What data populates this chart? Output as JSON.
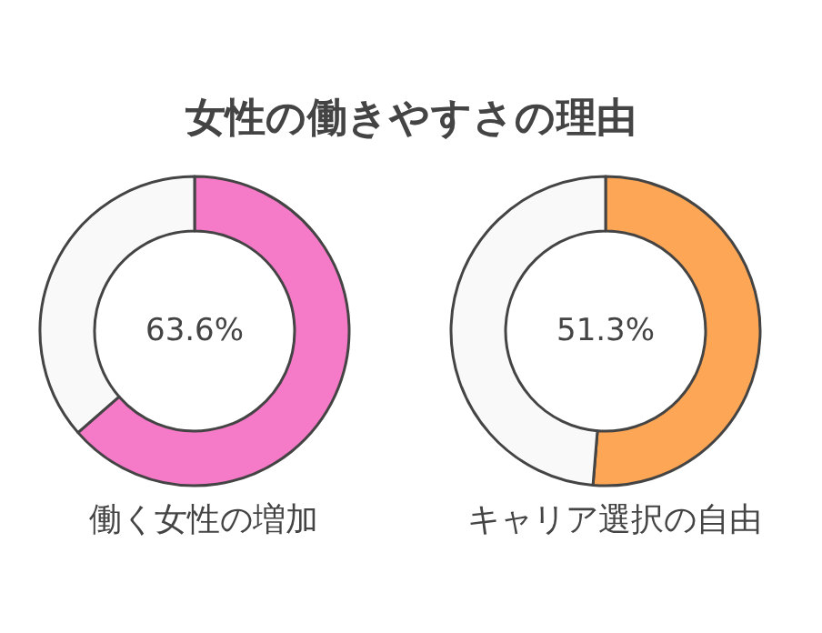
{
  "chart_data": [
    {
      "type": "donut",
      "title": "女性の働きやすさの理由",
      "categories": [
        "働く女性の増加",
        null
      ],
      "values": [
        63.6,
        36.4
      ],
      "colors": [
        "#f57ac8",
        "#f9f9f9"
      ],
      "value_labels": [
        "63.6%",
        null
      ]
    },
    {
      "type": "donut",
      "categories": [
        "キャリア選択の自由",
        null
      ],
      "values": [
        51.3,
        48.7
      ],
      "colors": [
        "#fda655",
        "#f9f9f9"
      ],
      "value_labels": [
        "51.3%",
        null
      ]
    }
  ]
}
